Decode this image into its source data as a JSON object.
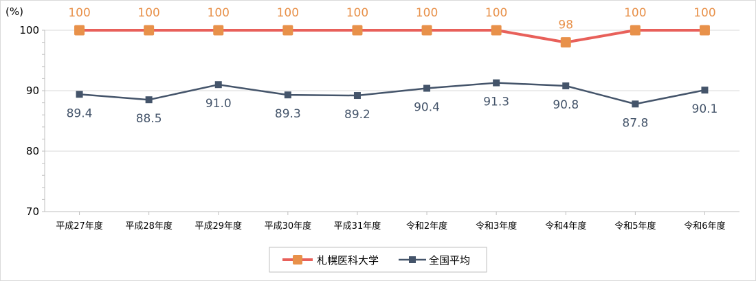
{
  "chart_data": {
    "type": "line",
    "unit_label": "(%)",
    "categories": [
      "平成27年度",
      "平成28年度",
      "平成29年度",
      "平成30年度",
      "平成31年度",
      "令和2年度",
      "令和3年度",
      "令和4年度",
      "令和5年度",
      "令和6年度"
    ],
    "series": [
      {
        "name": "札幌医科大学",
        "values": [
          100,
          100,
          100,
          100,
          100,
          100,
          100,
          98,
          100,
          100
        ],
        "labels": [
          "100",
          "100",
          "100",
          "100",
          "100",
          "100",
          "100",
          "98",
          "100",
          "100"
        ],
        "color": "#E8605A",
        "marker_color": "#E8914A",
        "label_color": "#E8914A"
      },
      {
        "name": "全国平均",
        "values": [
          89.4,
          88.5,
          91.0,
          89.3,
          89.2,
          90.4,
          91.3,
          90.8,
          87.8,
          90.1
        ],
        "labels": [
          "89.4",
          "88.5",
          "91.0",
          "89.3",
          "89.2",
          "90.4",
          "91.3",
          "90.8",
          "87.8",
          "90.1"
        ],
        "color": "#44546A",
        "marker_color": "#44546A",
        "label_color": "#44546A"
      }
    ],
    "ylim": [
      70,
      100
    ],
    "yticks": [
      "70",
      "80",
      "90",
      "100"
    ],
    "grid": true,
    "legend_position": "bottom"
  }
}
